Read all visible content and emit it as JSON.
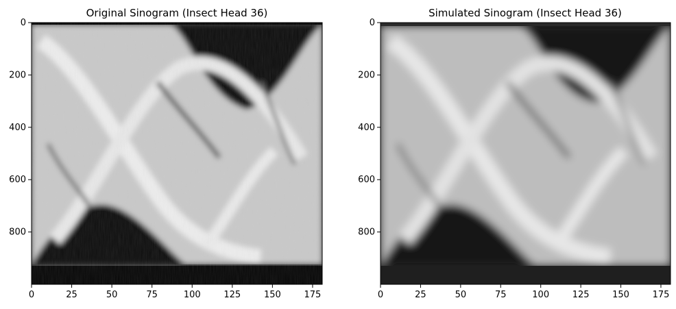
{
  "figure": {
    "background": "#ffffff",
    "colormap": "gray"
  },
  "chart_data": [
    {
      "type": "heatmap",
      "title": "Original Sinogram (Insect Head 36)",
      "xlabel": "",
      "ylabel": "",
      "xlim": [
        0,
        181
      ],
      "ylim": [
        1000,
        0
      ],
      "x_ticks": [
        0,
        25,
        50,
        75,
        100,
        125,
        150,
        175
      ],
      "y_ticks": [
        0,
        200,
        400,
        600,
        800
      ],
      "grid": false,
      "legend": "none"
    },
    {
      "type": "heatmap",
      "title": "Simulated Sinogram (Insect Head 36)",
      "xlabel": "",
      "ylabel": "",
      "xlim": [
        0,
        181
      ],
      "ylim": [
        1000,
        0
      ],
      "x_ticks": [
        0,
        25,
        50,
        75,
        100,
        125,
        150,
        175
      ],
      "y_ticks": [
        0,
        200,
        400,
        600,
        800
      ],
      "grid": false,
      "legend": "none"
    }
  ]
}
